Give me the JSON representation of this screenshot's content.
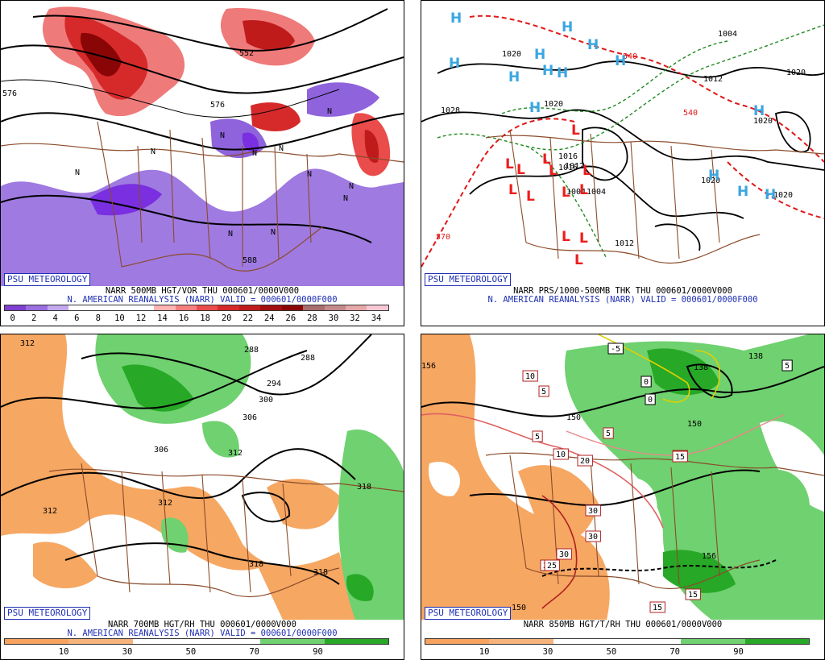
{
  "brand_label": "PSU METEOROLOGY",
  "panels": {
    "p1": {
      "title": "NARR 500MB HGT/VOR THU 000601/0000V000",
      "subtitle": "N. AMERICAN REANALYSIS (NARR) VALID = 000601/0000F000",
      "colorbar_ticks": [
        "0",
        "2",
        "4",
        "6",
        "8",
        "10",
        "12",
        "14",
        "16",
        "18",
        "20",
        "22",
        "24",
        "26",
        "28",
        "30",
        "32",
        "34"
      ],
      "contour_labels": [
        "552",
        "576",
        "588",
        "576"
      ],
      "markers": [
        "N",
        "N",
        "N",
        "N",
        "N",
        "N",
        "N",
        "N",
        "N",
        "N",
        "N"
      ]
    },
    "p2": {
      "title": "NARR PRS/1000-500MB THK THU 000601/0000V000",
      "subtitle": "N. AMERICAN REANALYSIS (NARR) VALID = 000601/0000F000",
      "contour_labels": [
        "1028",
        "1020",
        "1016",
        "1020",
        "1012",
        "1012",
        "1004",
        "1020",
        "1020",
        "1020",
        "1020",
        "1012",
        "570",
        "540",
        "540",
        "1016",
        "1004",
        "1004"
      ],
      "high_symbol": "H",
      "low_symbol": "L"
    },
    "p3": {
      "title": "NARR 700MB HGT/RH THU 000601/0000V000",
      "subtitle": "N. AMERICAN REANALYSIS (NARR) VALID = 000601/0000F000",
      "colorbar_ticks": [
        "10",
        "30",
        "50",
        "70",
        "90"
      ],
      "contour_labels": [
        "312",
        "312",
        "306",
        "300",
        "294",
        "288",
        "288",
        "306",
        "312",
        "312",
        "318",
        "318",
        "318"
      ]
    },
    "p4": {
      "title": "NARR 850MB HGT/T/RH THU 000601/0000V000",
      "subtitle": "",
      "colorbar_ticks": [
        "10",
        "30",
        "50",
        "70",
        "90"
      ],
      "contour_labels": [
        "156",
        "150",
        "150",
        "138",
        "138",
        "156",
        "150"
      ],
      "temp_labels": [
        "10",
        "5",
        "5",
        "5",
        "10",
        "20",
        "25",
        "30",
        "30",
        "30",
        "25",
        "15",
        "15",
        "15",
        "15",
        "0",
        "-5",
        "5",
        "0"
      ]
    }
  },
  "colors": {
    "vort_scale": [
      "#7f3fd0",
      "#9b6ee0",
      "#c3a8ef",
      "#ffffff",
      "#ffffff",
      "#ffffff",
      "#ffffff",
      "#ffb3b3",
      "#f57f7f",
      "#ea4b4b",
      "#d62a2a",
      "#c01b1b",
      "#a30e0e",
      "#8a0606",
      "#aa6d6d",
      "#c48a8a",
      "#e5a7a7",
      "#f7c8d4"
    ],
    "rh_scale": [
      "#f7a25e",
      "#f6b47c",
      "#ffffff",
      "#ffffff",
      "#6fd16f",
      "#27a827"
    ],
    "map_lines": "#8a4b2a",
    "brand": "#1f2fb4"
  }
}
